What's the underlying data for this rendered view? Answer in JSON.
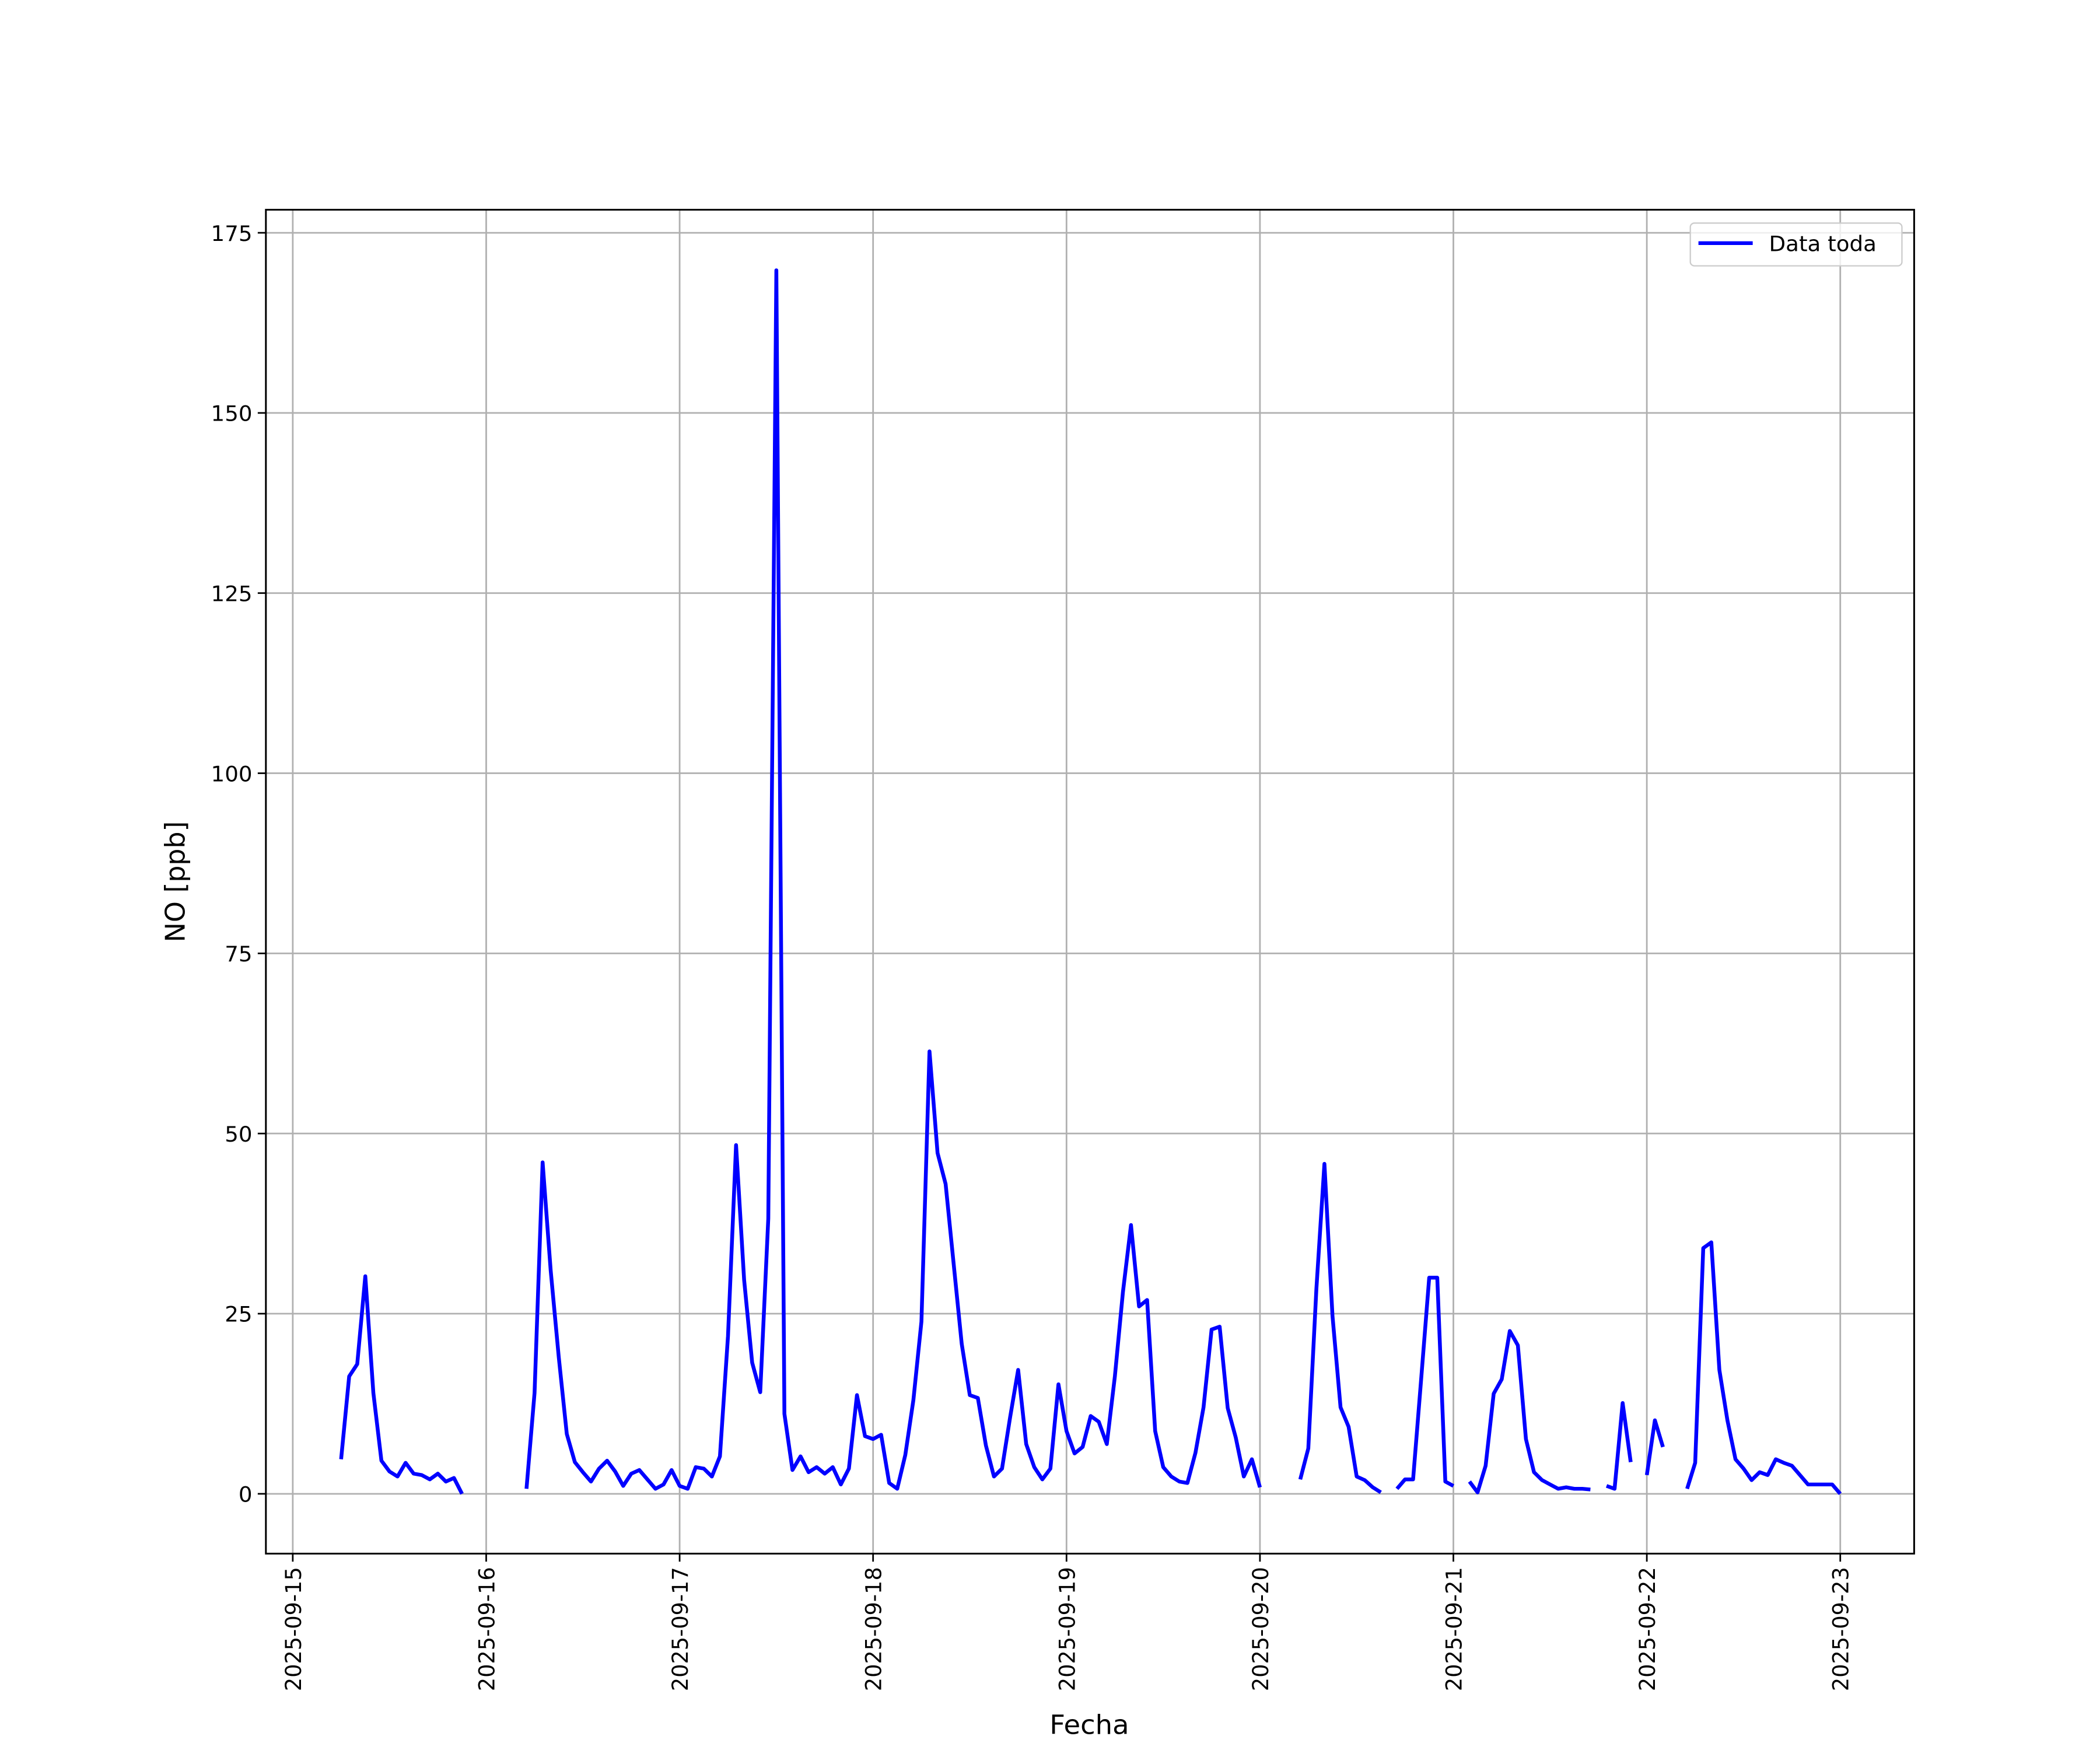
{
  "chart_data": {
    "type": "line",
    "xlabel": "Fecha",
    "ylabel": "NO [ppb]",
    "xlim": [
      "2025-09-14 20:40",
      "2025-09-23 09:10"
    ],
    "xticks": [
      "2025-09-15",
      "2025-09-16",
      "2025-09-17",
      "2025-09-18",
      "2025-09-19",
      "2025-09-20",
      "2025-09-21",
      "2025-09-22",
      "2025-09-23"
    ],
    "ylim": [
      -8.3,
      178.2
    ],
    "yticks": [
      0,
      25,
      50,
      75,
      100,
      125,
      150,
      175
    ],
    "grid": true,
    "legend": "upper right",
    "x": [
      "2025-09-15 06:00",
      "2025-09-15 07:00",
      "2025-09-15 08:00",
      "2025-09-15 09:00",
      "2025-09-15 10:00",
      "2025-09-15 11:00",
      "2025-09-15 12:00",
      "2025-09-15 13:00",
      "2025-09-15 14:00",
      "2025-09-15 15:00",
      "2025-09-15 16:00",
      "2025-09-15 17:00",
      "2025-09-15 18:00",
      "2025-09-15 19:00",
      "2025-09-15 20:00",
      "2025-09-15 21:00",
      "2025-09-15 22:00",
      "2025-09-15 23:00",
      "2025-09-16 00:00",
      "2025-09-16 01:00",
      "2025-09-16 02:00",
      "2025-09-16 03:00",
      "2025-09-16 04:00",
      "2025-09-16 05:00",
      "2025-09-16 06:00",
      "2025-09-16 07:00",
      "2025-09-16 08:00",
      "2025-09-16 09:00",
      "2025-09-16 10:00",
      "2025-09-16 11:00",
      "2025-09-16 12:00",
      "2025-09-16 13:00",
      "2025-09-16 14:00",
      "2025-09-16 15:00",
      "2025-09-16 16:00",
      "2025-09-16 17:00",
      "2025-09-16 18:00",
      "2025-09-16 19:00",
      "2025-09-16 20:00",
      "2025-09-16 21:00",
      "2025-09-16 22:00",
      "2025-09-16 23:00",
      "2025-09-17 00:00",
      "2025-09-17 01:00",
      "2025-09-17 02:00",
      "2025-09-17 03:00",
      "2025-09-17 04:00",
      "2025-09-17 05:00",
      "2025-09-17 06:00",
      "2025-09-17 07:00",
      "2025-09-17 08:00",
      "2025-09-17 09:00",
      "2025-09-17 10:00",
      "2025-09-17 11:00",
      "2025-09-17 12:00",
      "2025-09-17 13:00",
      "2025-09-17 14:00",
      "2025-09-17 15:00",
      "2025-09-17 16:00",
      "2025-09-17 17:00",
      "2025-09-17 18:00",
      "2025-09-17 19:00",
      "2025-09-17 20:00",
      "2025-09-17 21:00",
      "2025-09-17 22:00",
      "2025-09-17 23:00",
      "2025-09-18 00:00",
      "2025-09-18 01:00",
      "2025-09-18 02:00",
      "2025-09-18 03:00",
      "2025-09-18 04:00",
      "2025-09-18 05:00",
      "2025-09-18 06:00",
      "2025-09-18 07:00",
      "2025-09-18 08:00",
      "2025-09-18 09:00",
      "2025-09-18 10:00",
      "2025-09-18 11:00",
      "2025-09-18 12:00",
      "2025-09-18 13:00",
      "2025-09-18 14:00",
      "2025-09-18 15:00",
      "2025-09-18 16:00",
      "2025-09-18 17:00",
      "2025-09-18 18:00",
      "2025-09-18 19:00",
      "2025-09-18 20:00",
      "2025-09-18 21:00",
      "2025-09-18 22:00",
      "2025-09-18 23:00",
      "2025-09-19 00:00",
      "2025-09-19 01:00",
      "2025-09-19 02:00",
      "2025-09-19 03:00",
      "2025-09-19 04:00",
      "2025-09-19 05:00",
      "2025-09-19 06:00",
      "2025-09-19 07:00",
      "2025-09-19 08:00",
      "2025-09-19 09:00",
      "2025-09-19 10:00",
      "2025-09-19 11:00",
      "2025-09-19 12:00",
      "2025-09-19 13:00",
      "2025-09-19 14:00",
      "2025-09-19 15:00",
      "2025-09-19 16:00",
      "2025-09-19 17:00",
      "2025-09-19 18:00",
      "2025-09-19 19:00",
      "2025-09-19 20:00",
      "2025-09-19 21:00",
      "2025-09-19 22:00",
      "2025-09-19 23:00",
      "2025-09-20 00:00",
      "2025-09-20 01:00",
      "2025-09-20 02:00",
      "2025-09-20 03:00",
      "2025-09-20 04:00",
      "2025-09-20 05:00",
      "2025-09-20 06:00",
      "2025-09-20 07:00",
      "2025-09-20 08:00",
      "2025-09-20 09:00",
      "2025-09-20 10:00",
      "2025-09-20 11:00",
      "2025-09-20 12:00",
      "2025-09-20 13:00",
      "2025-09-20 14:00",
      "2025-09-20 15:00",
      "2025-09-20 16:00",
      "2025-09-20 17:00",
      "2025-09-20 18:00",
      "2025-09-20 19:00",
      "2025-09-20 20:00",
      "2025-09-20 21:00",
      "2025-09-20 22:00",
      "2025-09-20 23:00",
      "2025-09-21 00:00",
      "2025-09-21 01:00",
      "2025-09-21 02:00",
      "2025-09-21 03:00",
      "2025-09-21 04:00",
      "2025-09-21 05:00",
      "2025-09-21 06:00",
      "2025-09-21 07:00",
      "2025-09-21 08:00",
      "2025-09-21 09:00",
      "2025-09-21 10:00",
      "2025-09-21 11:00",
      "2025-09-21 12:00",
      "2025-09-21 13:00",
      "2025-09-21 14:00",
      "2025-09-21 15:00",
      "2025-09-21 16:00",
      "2025-09-21 17:00",
      "2025-09-21 18:00",
      "2025-09-21 19:00",
      "2025-09-21 20:00",
      "2025-09-21 21:00",
      "2025-09-21 22:00",
      "2025-09-21 23:00",
      "2025-09-22 00:00",
      "2025-09-22 01:00",
      "2025-09-22 02:00",
      "2025-09-22 03:00",
      "2025-09-22 04:00",
      "2025-09-22 05:00",
      "2025-09-22 06:00",
      "2025-09-22 07:00",
      "2025-09-22 08:00",
      "2025-09-22 09:00",
      "2025-09-22 10:00",
      "2025-09-22 11:00",
      "2025-09-22 12:00",
      "2025-09-22 13:00",
      "2025-09-22 14:00",
      "2025-09-22 15:00",
      "2025-09-22 16:00",
      "2025-09-22 17:00",
      "2025-09-22 18:00",
      "2025-09-22 19:00",
      "2025-09-22 20:00",
      "2025-09-22 21:00",
      "2025-09-22 22:00",
      "2025-09-22 23:00",
      "2025-09-23 00:00"
    ],
    "series": [
      {
        "name": "Data toda",
        "color": "#0000ff",
        "values": [
          4.8,
          16.3,
          18,
          30.2,
          14,
          4.6,
          3.1,
          2.4,
          4.3,
          2.8,
          2.6,
          2,
          2.8,
          1.7,
          2.2,
          0,
          null,
          null,
          null,
          null,
          null,
          null,
          null,
          0.7,
          14,
          46,
          31,
          19,
          8.3,
          4.4,
          3,
          1.7,
          3.5,
          4.6,
          3.1,
          1.1,
          2.8,
          3.3,
          2,
          0.7,
          1.3,
          3.3,
          1.1,
          0.7,
          3.7,
          3.5,
          2.4,
          5.2,
          21.9,
          48.4,
          29.7,
          18.2,
          14.1,
          38.2,
          169.8,
          11.1,
          3.3,
          5.2,
          3,
          3.7,
          2.8,
          3.7,
          1.3,
          3.5,
          13.7,
          8,
          7.6,
          8.2,
          1.5,
          0.7,
          5.4,
          13,
          23.9,
          61.4,
          47.3,
          43,
          31.9,
          20.8,
          13.7,
          13.3,
          6.7,
          2.4,
          3.5,
          10.6,
          17.2,
          6.9,
          3.7,
          2,
          3.5,
          15.2,
          8.7,
          5.6,
          6.5,
          10.8,
          10,
          6.9,
          16.3,
          28,
          37.3,
          26,
          26.9,
          8.7,
          3.7,
          2.4,
          1.7,
          1.5,
          5.7,
          12,
          22.8,
          23.2,
          11.9,
          7.8,
          2.4,
          4.8,
          0.9,
          null,
          null,
          null,
          null,
          2,
          6.3,
          28.4,
          45.8,
          24.7,
          12,
          9.3,
          2.4,
          1.9,
          0.9,
          0.2,
          null,
          0.7,
          2,
          2,
          15.9,
          30,
          30,
          1.7,
          1.1,
          null,
          1.7,
          0.2,
          3.9,
          13.9,
          15.9,
          22.6,
          20.6,
          7.6,
          3,
          1.9,
          1.3,
          0.7,
          0.9,
          0.7,
          0.7,
          0.6,
          null,
          1.1,
          0.7,
          12.6,
          4.4,
          null,
          2.6,
          10.2,
          6.5,
          null,
          null,
          0.7,
          4.3,
          34.1,
          34.9,
          17.2,
          10.2,
          4.8,
          3.5,
          1.9,
          3,
          2.6,
          4.8,
          4.3,
          3.9,
          2.6,
          1.3,
          1.3,
          1.3,
          1.3,
          0
        ]
      }
    ]
  }
}
